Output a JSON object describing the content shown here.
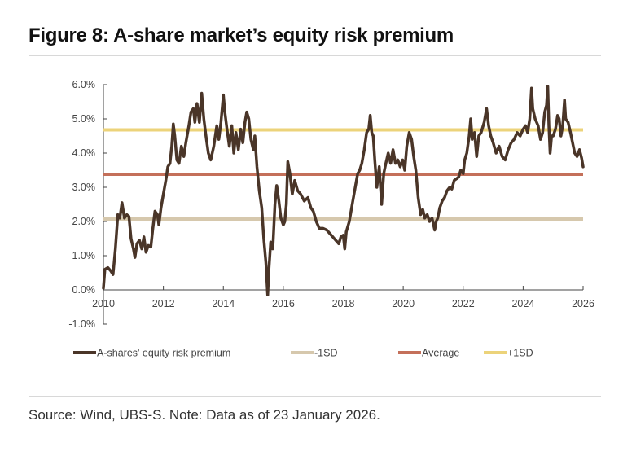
{
  "header": {
    "title": "Figure 8: A-share market’s equity risk premium"
  },
  "footer": {
    "source": "Source: Wind, UBS-S. Note: Data as of 23 January 2026."
  },
  "colors": {
    "erp": "#4a3528",
    "minus1sd": "#d6c8ad",
    "average": "#c4705a",
    "plus1sd": "#ecd37a",
    "axis": "#444444"
  },
  "chart_data": {
    "type": "line",
    "title": "Figure 8: A-share market’s equity risk premium",
    "xlabel": "",
    "ylabel": "",
    "xlim": [
      2010,
      2026
    ],
    "ylim": [
      -1.0,
      6.0
    ],
    "x_ticks": [
      "2010",
      "2012",
      "2014",
      "2016",
      "2018",
      "2020",
      "2022",
      "2024",
      "2026"
    ],
    "y_ticks": [
      "-1.0%",
      "0.0%",
      "1.0%",
      "2.0%",
      "3.0%",
      "4.0%",
      "5.0%",
      "6.0%"
    ],
    "grid": false,
    "legend_position": "bottom",
    "series": [
      {
        "name": "A-shares' equity risk premium",
        "points": [
          [
            2010.0,
            0.05
          ],
          [
            2010.05,
            0.6
          ],
          [
            2010.15,
            0.65
          ],
          [
            2010.25,
            0.55
          ],
          [
            2010.32,
            0.45
          ],
          [
            2010.4,
            1.2
          ],
          [
            2010.48,
            2.2
          ],
          [
            2010.55,
            2.1
          ],
          [
            2010.62,
            2.55
          ],
          [
            2010.7,
            2.1
          ],
          [
            2010.78,
            2.2
          ],
          [
            2010.85,
            2.15
          ],
          [
            2010.92,
            1.5
          ],
          [
            2011.0,
            1.2
          ],
          [
            2011.05,
            0.95
          ],
          [
            2011.12,
            1.35
          ],
          [
            2011.2,
            1.45
          ],
          [
            2011.28,
            1.2
          ],
          [
            2011.35,
            1.55
          ],
          [
            2011.42,
            1.1
          ],
          [
            2011.5,
            1.3
          ],
          [
            2011.58,
            1.25
          ],
          [
            2011.65,
            1.8
          ],
          [
            2011.72,
            2.3
          ],
          [
            2011.8,
            2.2
          ],
          [
            2011.85,
            1.9
          ],
          [
            2011.92,
            2.4
          ],
          [
            2012.0,
            2.8
          ],
          [
            2012.08,
            3.2
          ],
          [
            2012.15,
            3.6
          ],
          [
            2012.22,
            3.7
          ],
          [
            2012.28,
            4.2
          ],
          [
            2012.33,
            4.85
          ],
          [
            2012.38,
            4.5
          ],
          [
            2012.45,
            3.8
          ],
          [
            2012.52,
            3.7
          ],
          [
            2012.6,
            4.2
          ],
          [
            2012.68,
            3.9
          ],
          [
            2012.75,
            4.3
          ],
          [
            2012.85,
            4.8
          ],
          [
            2012.92,
            5.2
          ],
          [
            2013.0,
            5.3
          ],
          [
            2013.05,
            4.9
          ],
          [
            2013.12,
            5.45
          ],
          [
            2013.2,
            4.9
          ],
          [
            2013.28,
            5.75
          ],
          [
            2013.35,
            5.0
          ],
          [
            2013.42,
            4.5
          ],
          [
            2013.5,
            4.0
          ],
          [
            2013.58,
            3.8
          ],
          [
            2013.68,
            4.2
          ],
          [
            2013.78,
            4.8
          ],
          [
            2013.85,
            4.4
          ],
          [
            2013.92,
            4.9
          ],
          [
            2014.0,
            5.7
          ],
          [
            2014.05,
            5.2
          ],
          [
            2014.12,
            4.7
          ],
          [
            2014.2,
            4.2
          ],
          [
            2014.28,
            4.8
          ],
          [
            2014.35,
            4.0
          ],
          [
            2014.42,
            4.6
          ],
          [
            2014.5,
            4.1
          ],
          [
            2014.58,
            4.7
          ],
          [
            2014.65,
            4.3
          ],
          [
            2014.72,
            4.9
          ],
          [
            2014.78,
            5.2
          ],
          [
            2014.85,
            5.0
          ],
          [
            2014.92,
            4.4
          ],
          [
            2015.0,
            4.1
          ],
          [
            2015.05,
            4.5
          ],
          [
            2015.12,
            3.6
          ],
          [
            2015.2,
            2.9
          ],
          [
            2015.28,
            2.4
          ],
          [
            2015.35,
            1.5
          ],
          [
            2015.42,
            0.8
          ],
          [
            2015.48,
            -0.15
          ],
          [
            2015.52,
            0.6
          ],
          [
            2015.58,
            1.4
          ],
          [
            2015.65,
            1.2
          ],
          [
            2015.72,
            2.5
          ],
          [
            2015.78,
            3.05
          ],
          [
            2015.85,
            2.6
          ],
          [
            2015.92,
            2.1
          ],
          [
            2016.0,
            1.9
          ],
          [
            2016.05,
            2.0
          ],
          [
            2016.1,
            2.5
          ],
          [
            2016.15,
            3.75
          ],
          [
            2016.22,
            3.4
          ],
          [
            2016.3,
            2.8
          ],
          [
            2016.38,
            3.2
          ],
          [
            2016.48,
            2.9
          ],
          [
            2016.58,
            2.8
          ],
          [
            2016.7,
            2.6
          ],
          [
            2016.82,
            2.7
          ],
          [
            2016.92,
            2.4
          ],
          [
            2017.0,
            2.3
          ],
          [
            2017.1,
            2.0
          ],
          [
            2017.2,
            1.8
          ],
          [
            2017.32,
            1.8
          ],
          [
            2017.45,
            1.75
          ],
          [
            2017.55,
            1.65
          ],
          [
            2017.65,
            1.55
          ],
          [
            2017.75,
            1.45
          ],
          [
            2017.85,
            1.35
          ],
          [
            2017.92,
            1.55
          ],
          [
            2018.0,
            1.6
          ],
          [
            2018.05,
            1.2
          ],
          [
            2018.1,
            1.7
          ],
          [
            2018.2,
            2.0
          ],
          [
            2018.3,
            2.5
          ],
          [
            2018.4,
            3.0
          ],
          [
            2018.48,
            3.4
          ],
          [
            2018.55,
            3.5
          ],
          [
            2018.62,
            3.7
          ],
          [
            2018.7,
            4.1
          ],
          [
            2018.78,
            4.6
          ],
          [
            2018.85,
            4.7
          ],
          [
            2018.9,
            5.1
          ],
          [
            2018.95,
            4.6
          ],
          [
            2019.0,
            4.5
          ],
          [
            2019.05,
            3.8
          ],
          [
            2019.12,
            3.0
          ],
          [
            2019.2,
            3.6
          ],
          [
            2019.28,
            2.5
          ],
          [
            2019.35,
            3.4
          ],
          [
            2019.42,
            3.7
          ],
          [
            2019.5,
            4.0
          ],
          [
            2019.58,
            3.7
          ],
          [
            2019.66,
            4.1
          ],
          [
            2019.74,
            3.7
          ],
          [
            2019.82,
            3.8
          ],
          [
            2019.9,
            3.6
          ],
          [
            2019.98,
            3.8
          ],
          [
            2020.05,
            3.5
          ],
          [
            2020.12,
            4.2
          ],
          [
            2020.2,
            4.6
          ],
          [
            2020.28,
            4.4
          ],
          [
            2020.35,
            3.9
          ],
          [
            2020.42,
            3.5
          ],
          [
            2020.5,
            2.7
          ],
          [
            2020.58,
            2.2
          ],
          [
            2020.65,
            2.35
          ],
          [
            2020.72,
            2.1
          ],
          [
            2020.8,
            2.2
          ],
          [
            2020.88,
            2.0
          ],
          [
            2020.96,
            2.1
          ],
          [
            2021.05,
            1.75
          ],
          [
            2021.1,
            2.0
          ],
          [
            2021.15,
            2.1
          ],
          [
            2021.22,
            2.4
          ],
          [
            2021.3,
            2.6
          ],
          [
            2021.38,
            2.7
          ],
          [
            2021.46,
            2.9
          ],
          [
            2021.55,
            3.0
          ],
          [
            2021.62,
            2.95
          ],
          [
            2021.7,
            3.2
          ],
          [
            2021.78,
            3.25
          ],
          [
            2021.85,
            3.3
          ],
          [
            2021.92,
            3.5
          ],
          [
            2022.0,
            3.4
          ],
          [
            2022.05,
            3.8
          ],
          [
            2022.12,
            4.0
          ],
          [
            2022.2,
            4.5
          ],
          [
            2022.25,
            5.0
          ],
          [
            2022.3,
            4.4
          ],
          [
            2022.38,
            4.6
          ],
          [
            2022.45,
            3.9
          ],
          [
            2022.52,
            4.5
          ],
          [
            2022.6,
            4.6
          ],
          [
            2022.7,
            4.9
          ],
          [
            2022.78,
            5.3
          ],
          [
            2022.85,
            4.8
          ],
          [
            2022.92,
            4.5
          ],
          [
            2023.0,
            4.3
          ],
          [
            2023.1,
            4.0
          ],
          [
            2023.2,
            4.2
          ],
          [
            2023.3,
            3.9
          ],
          [
            2023.4,
            3.8
          ],
          [
            2023.5,
            4.1
          ],
          [
            2023.6,
            4.3
          ],
          [
            2023.7,
            4.4
          ],
          [
            2023.8,
            4.6
          ],
          [
            2023.9,
            4.5
          ],
          [
            2024.0,
            4.7
          ],
          [
            2024.08,
            4.8
          ],
          [
            2024.15,
            4.6
          ],
          [
            2024.22,
            5.0
          ],
          [
            2024.28,
            5.9
          ],
          [
            2024.32,
            5.3
          ],
          [
            2024.4,
            5.0
          ],
          [
            2024.5,
            4.8
          ],
          [
            2024.58,
            4.4
          ],
          [
            2024.65,
            4.6
          ],
          [
            2024.72,
            5.2
          ],
          [
            2024.78,
            5.4
          ],
          [
            2024.82,
            5.95
          ],
          [
            2024.86,
            4.8
          ],
          [
            2024.9,
            4.0
          ],
          [
            2024.95,
            4.5
          ],
          [
            2025.0,
            4.5
          ],
          [
            2025.08,
            4.7
          ],
          [
            2025.15,
            5.1
          ],
          [
            2025.2,
            5.0
          ],
          [
            2025.26,
            4.5
          ],
          [
            2025.32,
            4.8
          ],
          [
            2025.38,
            5.55
          ],
          [
            2025.42,
            5.0
          ],
          [
            2025.5,
            4.9
          ],
          [
            2025.58,
            4.6
          ],
          [
            2025.65,
            4.3
          ],
          [
            2025.72,
            4.0
          ],
          [
            2025.8,
            3.9
          ],
          [
            2025.88,
            4.1
          ],
          [
            2025.95,
            3.85
          ],
          [
            2026.0,
            3.6
          ]
        ]
      },
      {
        "name": "-1SD",
        "constant": 2.07
      },
      {
        "name": "Average",
        "constant": 3.38
      },
      {
        "name": "+1SD",
        "constant": 4.68
      }
    ],
    "legend": [
      "A-shares' equity risk premium",
      "-1SD",
      "Average",
      "+1SD"
    ]
  }
}
